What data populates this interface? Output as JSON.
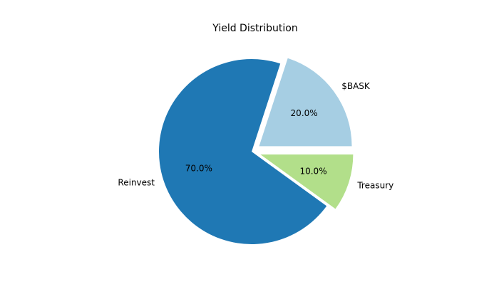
{
  "chart_data": {
    "type": "pie",
    "title": "Yield Distribution",
    "categories": [
      "$BASK",
      "Reinvest",
      "Treasury"
    ],
    "values": [
      20,
      70,
      10
    ],
    "value_labels": [
      "20.0%",
      "70.0%",
      "10.0%"
    ],
    "colors": [
      "#a6cee3",
      "#1f78b4",
      "#b2df8a"
    ],
    "explode": [
      0.1,
      0,
      0.1
    ]
  }
}
